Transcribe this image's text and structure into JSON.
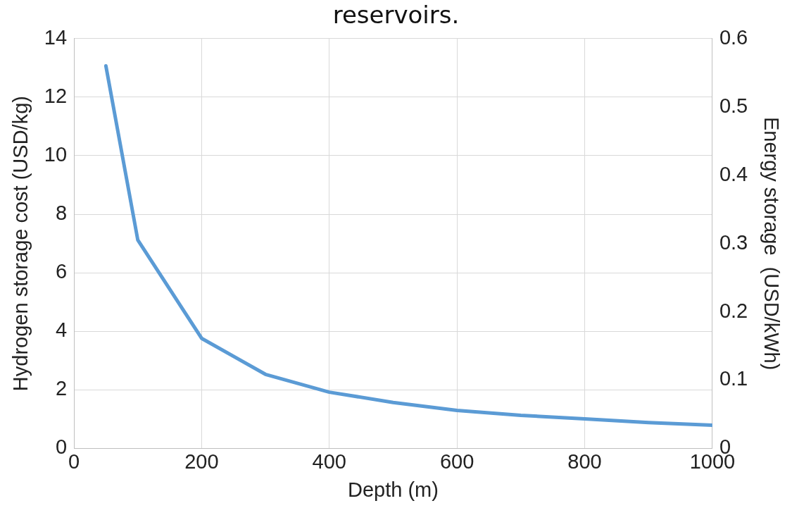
{
  "chart_data": {
    "type": "line",
    "title": "reservoirs.",
    "xlabel": "Depth (m)",
    "ylabel": "Hydrogen storage cost (USD/kg)",
    "y2label": "Energy storage  (USD/kWh)",
    "x": [
      50,
      100,
      200,
      300,
      400,
      500,
      600,
      700,
      800,
      900,
      1000
    ],
    "series": [
      {
        "color": "#5b9bd5",
        "values": [
          13.07,
          7.12,
          3.76,
          2.53,
          1.92,
          1.57,
          1.3,
          1.13,
          1.01,
          0.88,
          0.79
        ]
      }
    ],
    "xlim": [
      0,
      1000
    ],
    "xticks": [
      0,
      200,
      400,
      600,
      800,
      1000
    ],
    "ylim": [
      0,
      14
    ],
    "yticks": [
      0,
      2,
      4,
      6,
      8,
      10,
      12,
      14
    ],
    "y2lim": [
      0,
      0.6
    ],
    "y2ticks": [
      0,
      0.1,
      0.2,
      0.3,
      0.4,
      0.5,
      0.6
    ],
    "grid": true,
    "legend": false,
    "marker": "none",
    "line_style": "solid"
  }
}
